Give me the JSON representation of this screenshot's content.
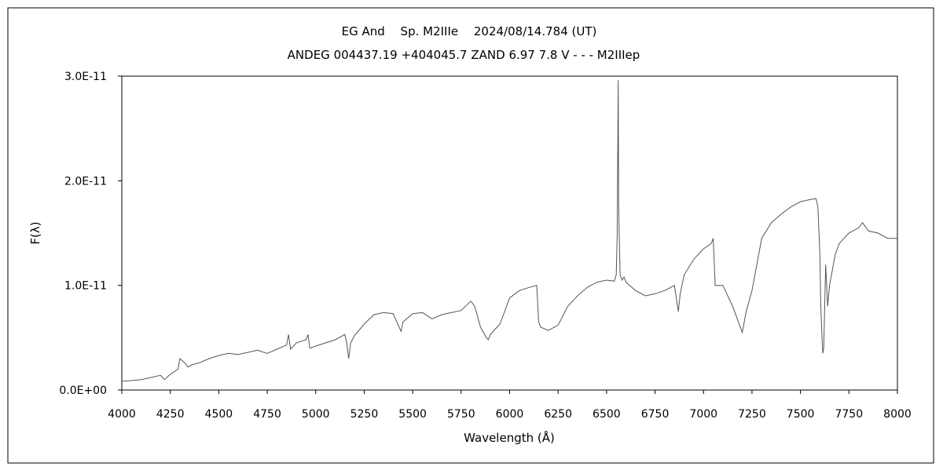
{
  "chart_data": {
    "type": "line",
    "title": "EG And　 Sp. M2IIIe　 2024/08/14.784 (UT)",
    "subtitle": "ANDEG 004437.19 +404045.7 ZAND 6.97 7.8 V - - - M2IIIep",
    "xlabel": "Wavelength (Å)",
    "ylabel": "F(λ)",
    "xlim": [
      4000,
      8000
    ],
    "ylim": [
      0,
      3e-11
    ],
    "xticks": [
      4000,
      4250,
      4500,
      4750,
      5000,
      5250,
      5500,
      5750,
      6000,
      6250,
      6500,
      6750,
      7000,
      7250,
      7500,
      7750,
      8000
    ],
    "xtick_labels": [
      "4000",
      "4250",
      "4500",
      "4750",
      "5000",
      "5250",
      "5500",
      "5750",
      "6000",
      "6250",
      "6500",
      "6750",
      "7000",
      "7250",
      "7500",
      "7750",
      "8000"
    ],
    "yticks": [
      0,
      1e-11,
      2e-11,
      3e-11
    ],
    "ytick_labels": [
      "0.0E+00",
      "1.0E-11",
      "2.0E-11",
      "3.0E-11"
    ],
    "grid": false,
    "line_color": "#555555",
    "series": [
      {
        "x": [
          4000,
          4050,
          4100,
          4150,
          4200,
          4220,
          4250,
          4290,
          4300,
          4330,
          4340,
          4360,
          4400,
          4450,
          4500,
          4550,
          4600,
          4650,
          4700,
          4750,
          4800,
          4850,
          4860,
          4870,
          4900,
          4950,
          4960,
          4970,
          5000,
          5050,
          5100,
          5150,
          5160,
          5170,
          5180,
          5200,
          5250,
          5300,
          5350,
          5400,
          5440,
          5450,
          5500,
          5550,
          5600,
          5650,
          5700,
          5750,
          5800,
          5820,
          5850,
          5880,
          5890,
          5900,
          5950,
          6000,
          6050,
          6100,
          6140,
          6150,
          6160,
          6200,
          6250,
          6300,
          6350,
          6400,
          6450,
          6500,
          6540,
          6550,
          6555,
          6560,
          6562,
          6565,
          6570,
          6580,
          6590,
          6600,
          6650,
          6700,
          6750,
          6800,
          6850,
          6870,
          6880,
          6900,
          6950,
          7000,
          7040,
          7050,
          7060,
          7100,
          7150,
          7180,
          7200,
          7220,
          7250,
          7300,
          7350,
          7400,
          7450,
          7500,
          7550,
          7580,
          7590,
          7600,
          7605,
          7610,
          7615,
          7620,
          7630,
          7640,
          7650,
          7680,
          7700,
          7750,
          7800,
          7820,
          7850,
          7900,
          7950,
          8000
        ],
        "y": [
          8.5e-13,
          9e-13,
          1e-12,
          1.2e-12,
          1.4e-12,
          1e-12,
          1.5e-12,
          2e-12,
          3e-12,
          2.5e-12,
          2.2e-12,
          2.4e-12,
          2.6e-12,
          3e-12,
          3.3e-12,
          3.5e-12,
          3.4e-12,
          3.6e-12,
          3.8e-12,
          3.5e-12,
          3.9e-12,
          4.3e-12,
          5.3e-12,
          3.9e-12,
          4.5e-12,
          4.8e-12,
          5.3e-12,
          4e-12,
          4.2e-12,
          4.5e-12,
          4.8e-12,
          5.3e-12,
          4.5e-12,
          3e-12,
          4.5e-12,
          5.2e-12,
          6.3e-12,
          7.2e-12,
          7.4e-12,
          7.3e-12,
          5.6e-12,
          6.5e-12,
          7.3e-12,
          7.4e-12,
          6.8e-12,
          7.2e-12,
          7.4e-12,
          7.6e-12,
          8.5e-12,
          8e-12,
          6e-12,
          5e-12,
          4.8e-12,
          5.3e-12,
          6.3e-12,
          8.8e-12,
          9.5e-12,
          9.8e-12,
          1e-11,
          6.5e-12,
          6e-12,
          5.7e-12,
          6.2e-12,
          8e-12,
          9e-12,
          9.8e-12,
          1.03e-11,
          1.05e-11,
          1.04e-11,
          1.1e-11,
          1.5e-11,
          2.96e-11,
          1.85e-11,
          1.5e-11,
          1.1e-11,
          1.05e-11,
          1.08e-11,
          1.03e-11,
          9.5e-12,
          9e-12,
          9.2e-12,
          9.5e-12,
          1e-11,
          7.5e-12,
          9.2e-12,
          1.1e-11,
          1.25e-11,
          1.35e-11,
          1.4e-11,
          1.45e-11,
          1e-11,
          1e-11,
          8e-12,
          6.5e-12,
          5.5e-12,
          7.5e-12,
          9.5e-12,
          1.45e-11,
          1.6e-11,
          1.68e-11,
          1.75e-11,
          1.8e-11,
          1.82e-11,
          1.83e-11,
          1.75e-11,
          1.3e-11,
          8e-12,
          5.5e-12,
          3.5e-12,
          4e-12,
          1.2e-11,
          8e-12,
          1e-11,
          1.3e-11,
          1.4e-11,
          1.5e-11,
          1.55e-11,
          1.6e-11,
          1.52e-11,
          1.5e-11,
          1.45e-11,
          1.45e-11
        ]
      }
    ]
  }
}
